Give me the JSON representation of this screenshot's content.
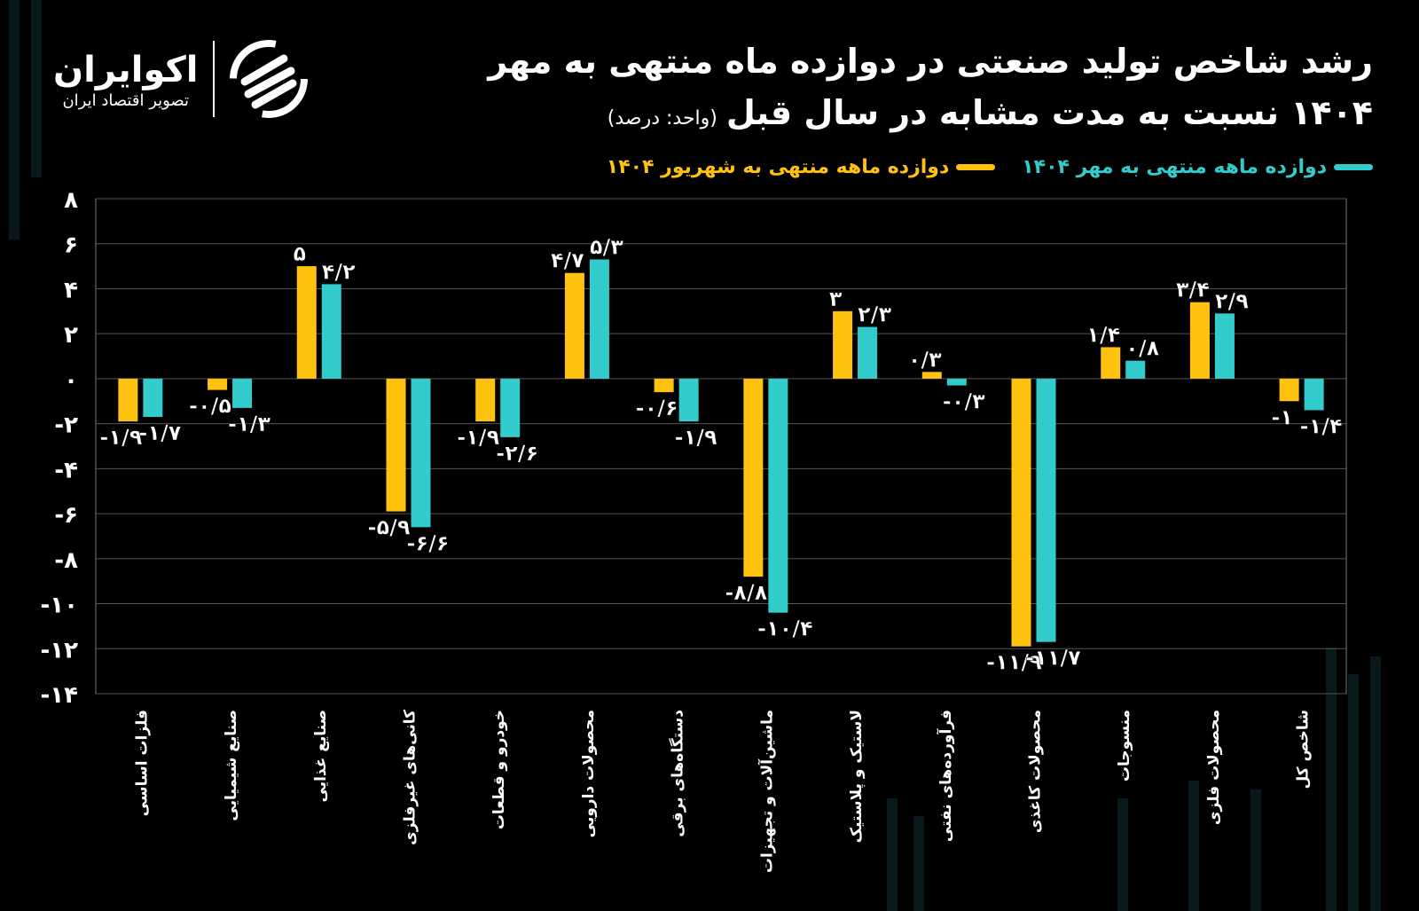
{
  "logo": {
    "name": "اکوایران",
    "tagline": "تصویر اقتصاد ایران"
  },
  "chart_data": {
    "type": "bar",
    "title_line1": "رشد شاخص تولید صنعتی در دوازده ماه منتهی به مهر",
    "title_line2": "۱۴۰۴ نسبت به مدت مشابه در سال قبل",
    "unit": "(واحد: درصد)",
    "ylim": [
      -14,
      8
    ],
    "yticks": [
      8,
      6,
      4,
      2,
      0,
      -2,
      -4,
      -6,
      -8,
      -10,
      -12,
      -14
    ],
    "ytick_labels": [
      "۸",
      "۶",
      "۴",
      "۲",
      "۰",
      "-۲",
      "-۴",
      "-۶",
      "-۸",
      "-۱۰",
      "-۱۲",
      "-۱۴"
    ],
    "grid": true,
    "legend_position": "top-right",
    "categories": [
      "فلزات اساسی",
      "صنایع شیمیایی",
      "صنایع غذایی",
      "کانی‌های غیرفلزی",
      "خودرو و قطعات",
      "محصولات دارویی",
      "دستگاه‌های برقی",
      "ماشین‌آلات و تجهیزات",
      "لاستیک و پلاستیک",
      "فرآورده‌های نفتی",
      "محصولات کاغذی",
      "منسوجات",
      "محصولات فلزی",
      "شاخص کل"
    ],
    "series": [
      {
        "name": "دوازده ماهه منتهی به شهریور ۱۴۰۴",
        "color": "#FFC20E",
        "values": [
          -1.9,
          -0.5,
          5,
          -5.9,
          -1.9,
          4.7,
          -0.6,
          -8.8,
          3,
          0.3,
          -11.9,
          1.4,
          3.4,
          -1
        ],
        "labels": [
          "-۱/۹",
          "-۰/۵",
          "۵",
          "-۵/۹",
          "-۱/۹",
          "۴/۷",
          "-۰/۶",
          "-۸/۸",
          "۳",
          "۰/۳",
          "-۱۱/۹",
          "۱/۴",
          "۳/۴",
          "-۱"
        ]
      },
      {
        "name": "دوازده ماهه منتهی به مهر ۱۴۰۴",
        "color": "#33CCCC",
        "values": [
          -1.7,
          -1.3,
          4.2,
          -6.6,
          -2.6,
          5.3,
          -1.9,
          -10.4,
          2.3,
          -0.3,
          -11.7,
          0.8,
          2.9,
          -1.4
        ],
        "labels": [
          "-۱/۷",
          "-۱/۳",
          "۴/۲",
          "-۶/۶",
          "-۲/۶",
          "۵/۳",
          "-۱/۹",
          "-۱۰/۴",
          "۲/۳",
          "-۰/۳",
          "-۱۱/۷",
          "۰/۸",
          "۲/۹",
          "-۱/۴"
        ]
      }
    ]
  }
}
